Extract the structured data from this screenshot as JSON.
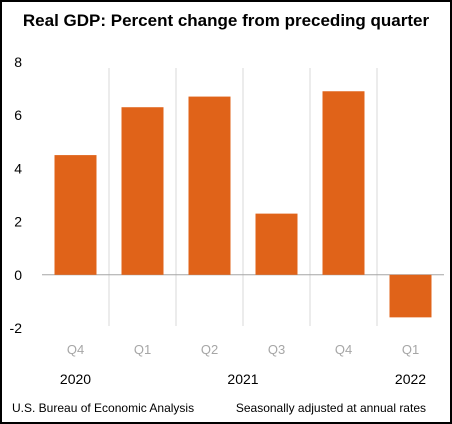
{
  "chart_data": {
    "type": "bar",
    "title": "Real GDP:  Percent change from preceding quarter",
    "categories": [
      "Q4",
      "Q1",
      "Q2",
      "Q3",
      "Q4",
      "Q1"
    ],
    "year_labels": [
      {
        "label": "2020",
        "category_index": 0
      },
      {
        "label": "2021",
        "category_index": 2.5
      },
      {
        "label": "2022",
        "category_index": 5
      }
    ],
    "series": [
      {
        "values": [
          4.5,
          6.3,
          6.7,
          2.3,
          6.9,
          -1.6
        ]
      }
    ],
    "ylim": [
      -2,
      8
    ],
    "yticks": [
      "8",
      "6",
      "4",
      "2",
      "0",
      "-2"
    ],
    "ytick_values": [
      8,
      6,
      4,
      2,
      0,
      -2
    ],
    "xlabel": "",
    "ylabel": "",
    "grid": false,
    "legend": "none",
    "bar_color": "#e06319",
    "axis_color": "#a6a6a6",
    "source": "U.S. Bureau of Economic Analysis",
    "note": "Seasonally adjusted at annual rates"
  }
}
